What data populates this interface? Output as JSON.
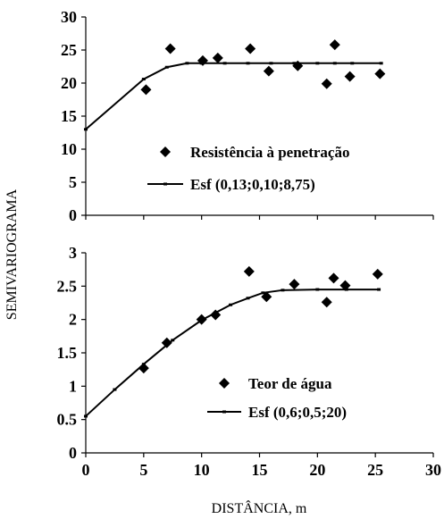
{
  "figure": {
    "ylabel": "SEMIVARIOGRAMA",
    "xlabel": "DISTÂNCIA, m"
  },
  "chart_data": [
    {
      "type": "scatter",
      "xlim": [
        0,
        30
      ],
      "ylim": [
        0,
        30
      ],
      "xticks": [
        "0",
        "5",
        "10",
        "15",
        "20",
        "25",
        "30"
      ],
      "yticks": [
        "0",
        "5",
        "10",
        "15",
        "20",
        "25",
        "30"
      ],
      "x_tick_labels_shown": false,
      "grid": false,
      "legend_position": "center-right",
      "series": [
        {
          "name": "Resistência à penetração",
          "kind": "points",
          "marker": "diamond",
          "x": [
            5.2,
            7.3,
            10.1,
            11.4,
            14.2,
            15.8,
            18.3,
            20.8,
            21.5,
            22.8,
            25.4
          ],
          "y": [
            19.0,
            25.2,
            23.4,
            23.8,
            25.2,
            21.8,
            22.6,
            19.9,
            25.8,
            21.0,
            21.4
          ]
        },
        {
          "name": "Esf (0,13;0,10;8,75)",
          "kind": "line",
          "marker": "dash",
          "x": [
            0,
            5.0,
            7.0,
            8.75,
            10.0,
            12.0,
            14.0,
            16.0,
            18.0,
            20.0,
            21.5,
            23.0,
            25.5
          ],
          "y": [
            13.0,
            20.6,
            22.4,
            23.0,
            23.0,
            23.0,
            23.0,
            23.0,
            23.0,
            23.0,
            23.0,
            23.0,
            23.0
          ]
        }
      ]
    },
    {
      "type": "scatter",
      "xlim": [
        0,
        30
      ],
      "ylim": [
        0,
        3
      ],
      "xticks": [
        "0",
        "5",
        "10",
        "15",
        "20",
        "25",
        "30"
      ],
      "yticks": [
        "0",
        "0.5",
        "1",
        "1.5",
        "2",
        "2.5",
        "3"
      ],
      "grid": false,
      "legend_position": "bottom-center",
      "series": [
        {
          "name": "Teor de água",
          "kind": "points",
          "marker": "diamond",
          "x": [
            5.0,
            7.0,
            10.0,
            11.2,
            14.1,
            15.6,
            18.0,
            20.8,
            21.4,
            22.4,
            25.2
          ],
          "y": [
            1.27,
            1.65,
            2.0,
            2.07,
            2.72,
            2.34,
            2.53,
            2.26,
            2.62,
            2.51,
            2.68
          ]
        },
        {
          "name": "Esf (0,6;0,5;20)",
          "kind": "line",
          "marker": "dash",
          "x": [
            0,
            2.5,
            5.0,
            7.5,
            10.0,
            12.5,
            14.0,
            15.3,
            17.0,
            20.0,
            22.5,
            25.3
          ],
          "y": [
            0.55,
            0.95,
            1.33,
            1.69,
            1.99,
            2.22,
            2.32,
            2.4,
            2.44,
            2.45,
            2.45,
            2.45
          ]
        }
      ]
    }
  ]
}
